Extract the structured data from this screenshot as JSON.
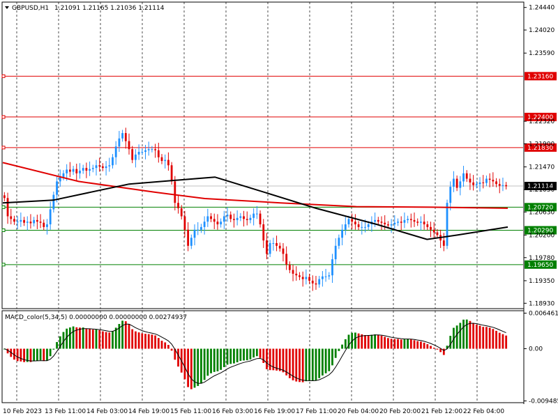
{
  "header": {
    "symbol": "GBPUSD,H1",
    "ohlc": "1.21091 1.21165 1.21036 1.21114"
  },
  "indicator": {
    "label": "MACD_color(5,34,5) 0.00000000 0.00000000 0.00274937"
  },
  "chart_data": {
    "type": "candlestick",
    "price_axis": {
      "range": [
        1.1883,
        1.2454
      ],
      "ticks": [
        "1.24440",
        "1.24020",
        "1.23590",
        "1.22320",
        "1.21900",
        "1.21470",
        "1.21050",
        "1.20630",
        "1.20200",
        "1.19780",
        "1.19350",
        "1.18930"
      ]
    },
    "macd_axis": {
      "range": [
        -0.0098,
        0.0069
      ],
      "ticks": [
        "0.006461",
        "0.00",
        "-0.009485"
      ]
    },
    "time_labels": [
      "10 Feb 2023",
      "13 Feb 11:00",
      "14 Feb 03:00",
      "14 Feb 19:00",
      "15 Feb 11:00",
      "16 Feb 03:00",
      "16 Feb 19:00",
      "17 Feb 11:00",
      "20 Feb 04:00",
      "20 Feb 20:00",
      "21 Feb 12:00",
      "22 Feb 04:00"
    ],
    "levels": [
      {
        "value": 1.2316,
        "label": "1.23160",
        "color": "#e00000"
      },
      {
        "value": 1.224,
        "label": "1.22400",
        "color": "#e00000"
      },
      {
        "value": 1.2183,
        "label": "1.21830",
        "color": "#e00000"
      },
      {
        "value": 1.2072,
        "label": "1.20720",
        "color": "#008000"
      },
      {
        "value": 1.2029,
        "label": "1.20290",
        "color": "#008000"
      },
      {
        "value": 1.1965,
        "label": "1.19650",
        "color": "#008000"
      }
    ],
    "current_price": {
      "value": 1.21114,
      "label": "1.21114"
    },
    "close_series": [
      1.2089,
      1.2055,
      1.205,
      1.2045,
      1.2045,
      1.2048,
      1.2043,
      1.2045,
      1.2042,
      1.2048,
      1.2045,
      1.2043,
      1.2035,
      1.204,
      1.2068,
      1.2095,
      1.212,
      1.2128,
      1.2135,
      1.2142,
      1.2138,
      1.2143,
      1.2135,
      1.214,
      1.2145,
      1.214,
      1.2143,
      1.2145,
      1.215,
      1.2148,
      1.2145,
      1.2148,
      1.215,
      1.2165,
      1.2185,
      1.22,
      1.221,
      1.2195,
      1.218,
      1.216,
      1.217,
      1.2175,
      1.2175,
      1.2178,
      1.218,
      1.218,
      1.2178,
      1.2165,
      1.2158,
      1.216,
      1.215,
      1.212,
      1.208,
      1.207,
      1.2055,
      1.203,
      1.2,
      1.2015,
      1.203,
      1.203,
      1.2035,
      1.2045,
      1.2055,
      1.205,
      1.2045,
      1.204,
      1.2045,
      1.2055,
      1.2058,
      1.205,
      1.2048,
      1.2052,
      1.2055,
      1.205,
      1.2048,
      1.2052,
      1.206,
      1.206,
      1.204,
      1.201,
      1.1985,
      1.2005,
      1.2005,
      1.2,
      1.1995,
      1.1985,
      1.1965,
      1.1955,
      1.1948,
      1.1945,
      1.1942,
      1.1938,
      1.1942,
      1.1935,
      1.193,
      1.1928,
      1.1938,
      1.1943,
      1.1943,
      1.1945,
      1.1975,
      1.2,
      1.2015,
      1.203,
      1.204,
      1.205,
      1.2045,
      1.204,
      1.2035,
      1.2035,
      1.2035,
      1.204,
      1.2045,
      1.2048,
      1.2045,
      1.2043,
      1.204,
      1.2038,
      1.204,
      1.2043,
      1.2045,
      1.2043,
      1.2048,
      1.205,
      1.2048,
      1.2045,
      1.2043,
      1.2045,
      1.204,
      1.2035,
      1.203,
      1.2025,
      1.202,
      1.201,
      1.2,
      1.208,
      1.211,
      1.2125,
      1.2108,
      1.212,
      1.2135,
      1.2125,
      1.2118,
      1.2113,
      1.2115,
      1.2118,
      1.2117,
      1.2125,
      1.2123,
      1.212,
      1.2115,
      1.2112,
      1.2113,
      1.2111
    ],
    "ma_black": {
      "name": "",
      "points": [
        [
          0,
          1.208
        ],
        [
          0.1,
          1.2085
        ],
        [
          0.25,
          1.2115
        ],
        [
          0.42,
          1.2128
        ],
        [
          0.5,
          1.2105
        ],
        [
          0.62,
          1.207
        ],
        [
          0.74,
          1.204
        ],
        [
          0.84,
          1.2012
        ],
        [
          0.9,
          1.202
        ],
        [
          1.0,
          1.2035
        ]
      ]
    },
    "ma_red": {
      "name": "",
      "points": [
        [
          0,
          1.2155
        ],
        [
          0.15,
          1.212
        ],
        [
          0.3,
          1.21
        ],
        [
          0.4,
          1.2088
        ],
        [
          0.55,
          1.208
        ],
        [
          0.7,
          1.2073
        ],
        [
          0.85,
          1.2072
        ],
        [
          1.0,
          1.207
        ]
      ]
    }
  }
}
